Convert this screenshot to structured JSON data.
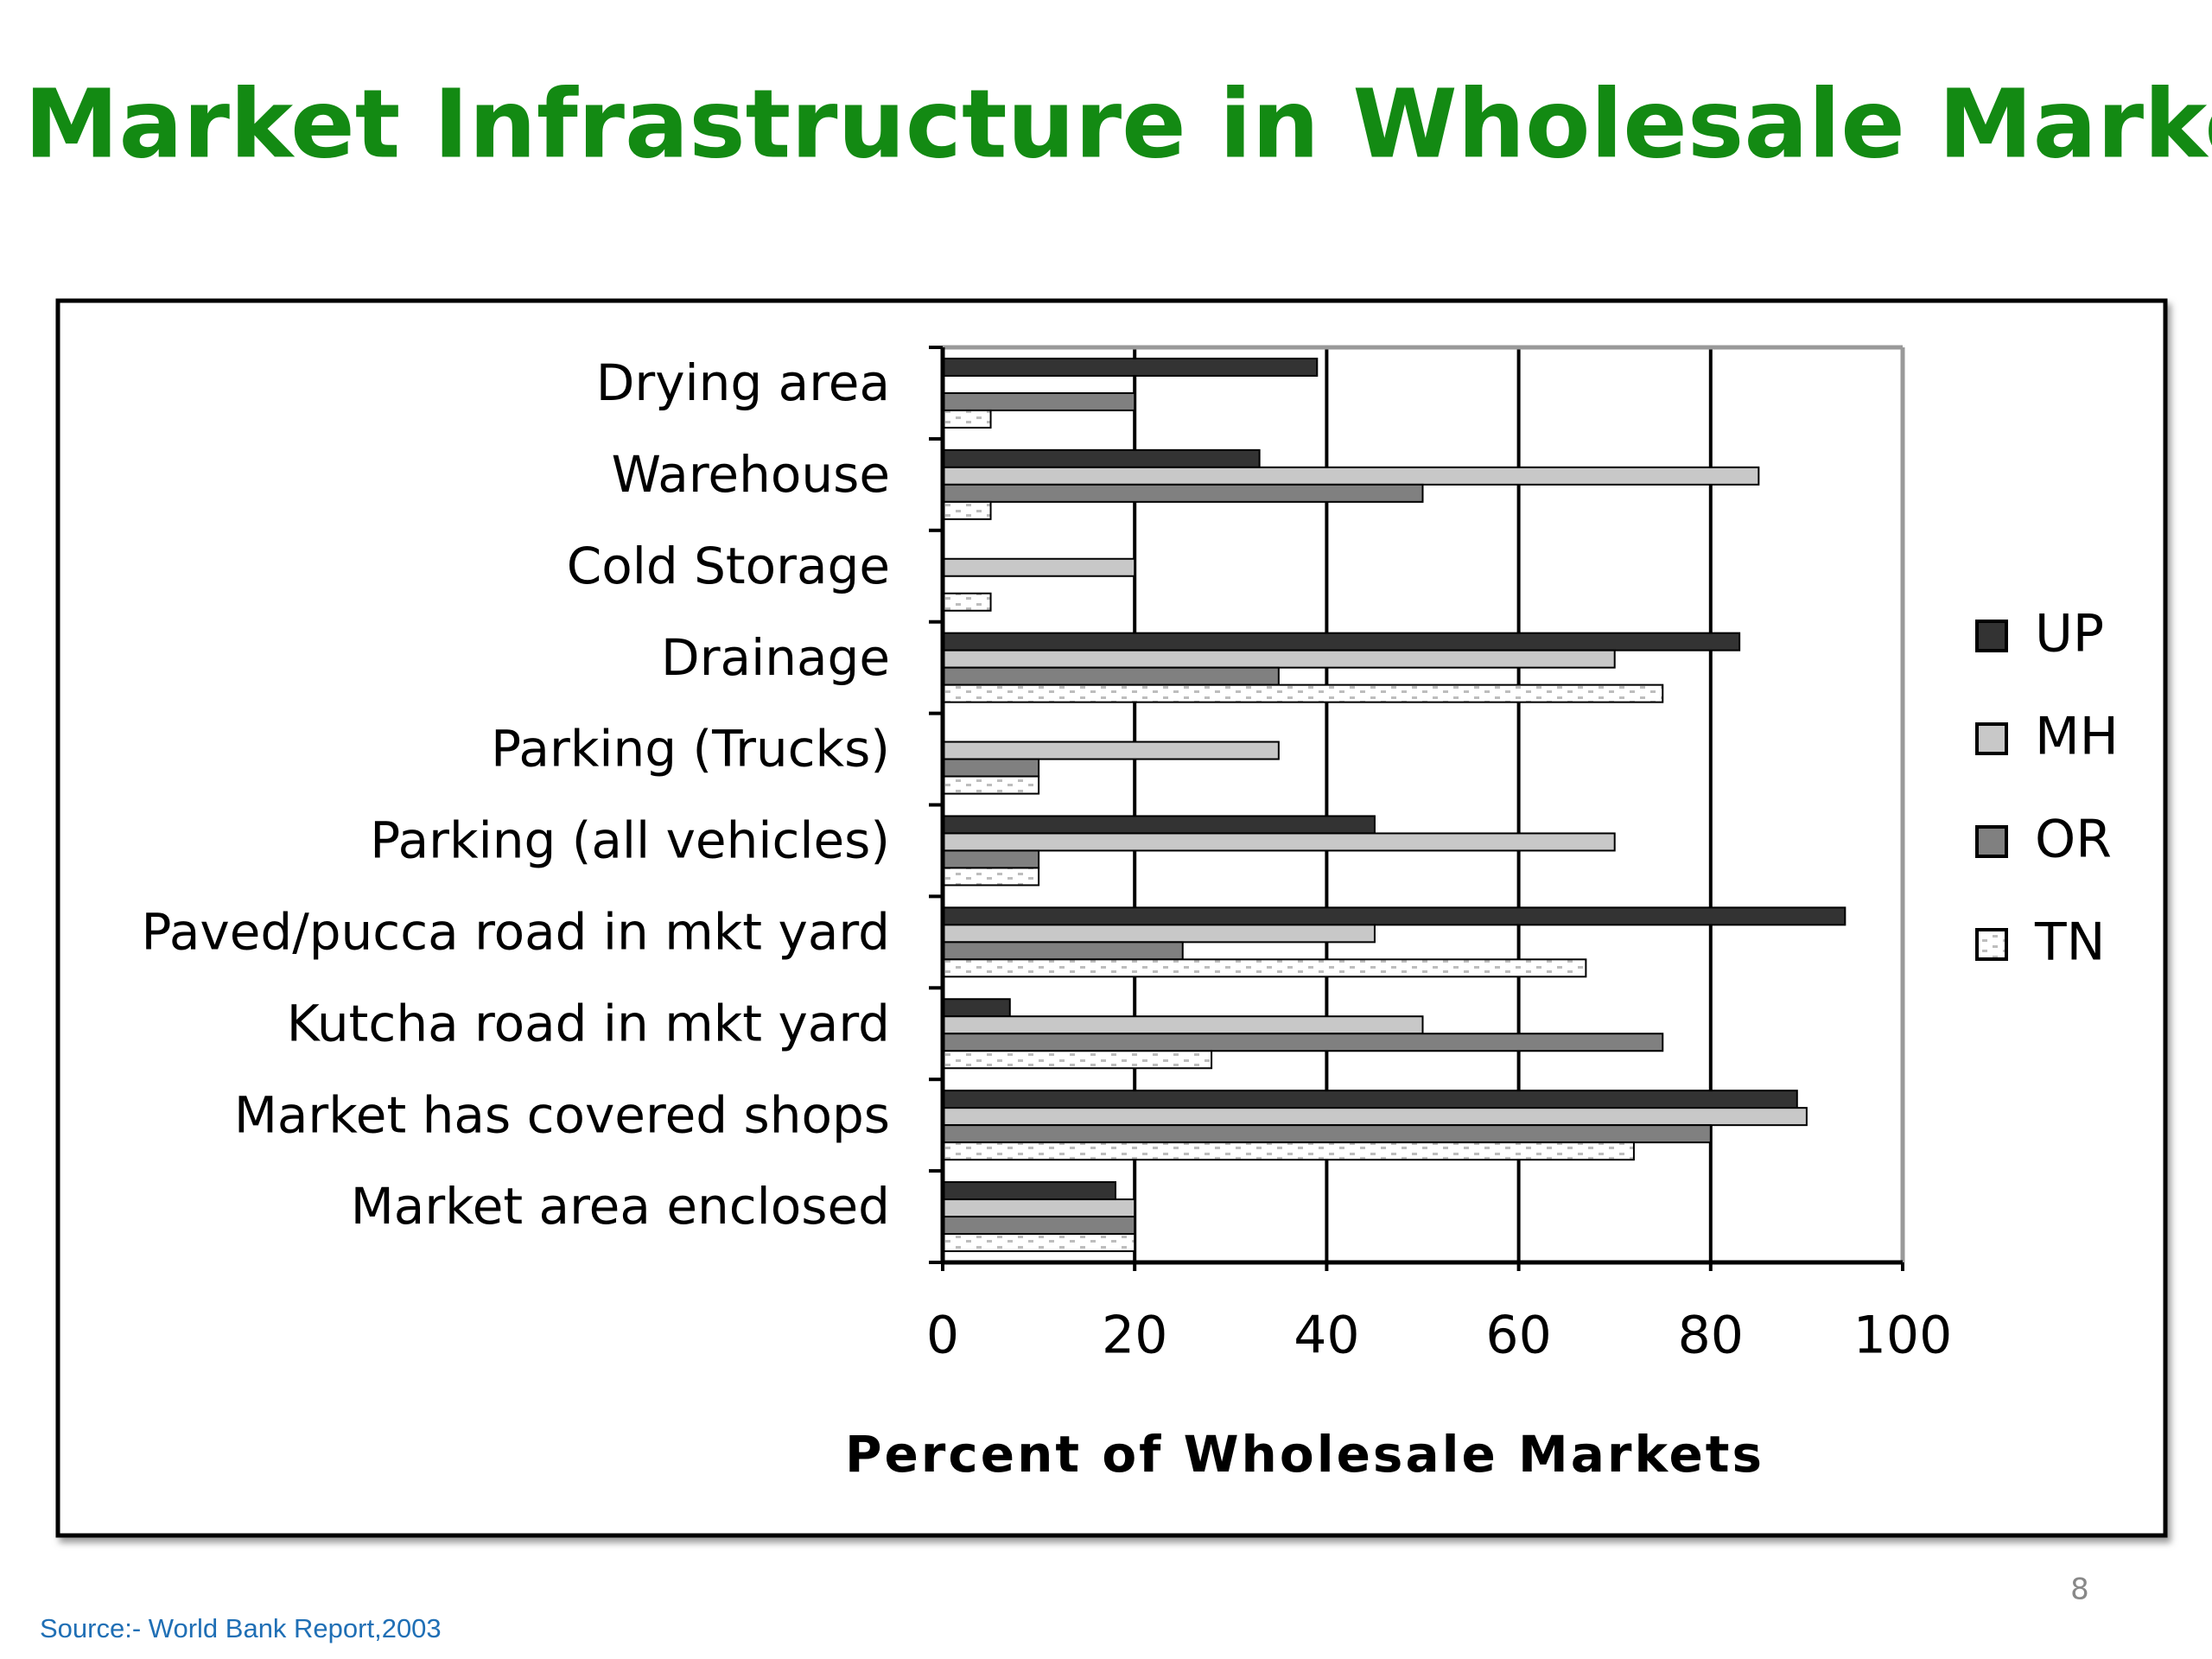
{
  "slide": {
    "title": "Market Infrastructure in Wholesale Markets",
    "page_number": "8",
    "source": "Source:- World Bank Report,2003"
  },
  "chart_data": {
    "type": "bar",
    "orientation": "horizontal",
    "x_label": "Percent of Wholesale Markets",
    "categories": [
      "Drying area",
      "Warehouse",
      "Cold Storage",
      "Drainage",
      "Parking (Trucks)",
      "Parking (all vehicles)",
      "Paved/pucca road in mkt yard",
      "Kutcha road in mkt yard",
      "Market has covered shops",
      "Market area enclosed"
    ],
    "series": [
      {
        "name": "UP",
        "color": "#333333",
        "values": [
          39,
          33,
          0,
          83,
          0,
          45,
          94,
          7,
          89,
          18
        ]
      },
      {
        "name": "MH",
        "color": "#c8c8c8",
        "values": [
          0,
          85,
          20,
          70,
          35,
          70,
          45,
          50,
          90,
          20
        ]
      },
      {
        "name": "OR",
        "color": "#808080",
        "values": [
          20,
          50,
          0,
          35,
          10,
          10,
          25,
          75,
          80,
          20
        ]
      },
      {
        "name": "TN",
        "color": "#bdbdbd",
        "pattern": "checker",
        "values": [
          5,
          5,
          5,
          75,
          10,
          10,
          67,
          28,
          72,
          20
        ]
      }
    ],
    "xlim": [
      0,
      100
    ],
    "xticks": [
      0,
      20,
      40,
      60,
      80,
      100
    ],
    "grid": true,
    "legend": "right"
  }
}
